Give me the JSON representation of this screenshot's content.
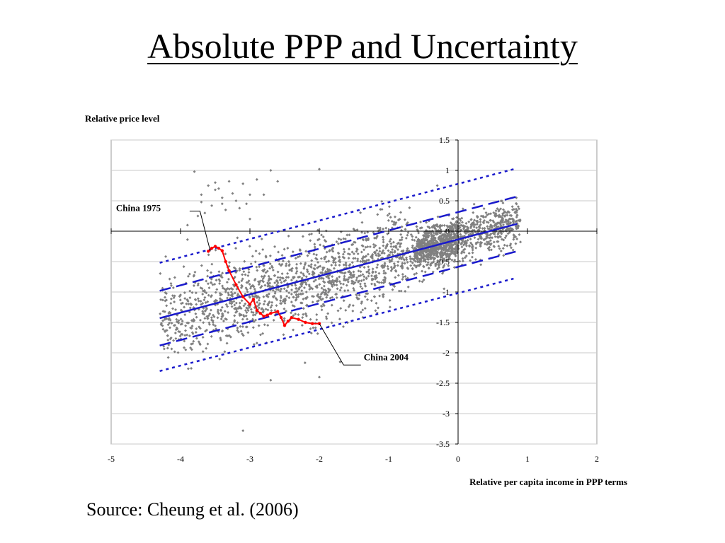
{
  "slide": {
    "title": "Absolute PPP and Uncertainty",
    "source": "Source: Cheung et al. (2006)"
  },
  "chart_data": {
    "type": "scatter",
    "ylabel": "Relative price level",
    "xlabel": "Relative per capita income in PPP terms",
    "xlim": [
      -5,
      2
    ],
    "ylim": [
      -3.5,
      1.5
    ],
    "x_ticks": [
      -5,
      -4,
      -3,
      -2,
      -1,
      0,
      1,
      2
    ],
    "y_ticks": [
      1.5,
      1,
      0.5,
      0,
      -0.5,
      -1,
      -1.5,
      -2,
      -2.5,
      -3,
      -3.5
    ],
    "grid": "horizontal",
    "colors": {
      "points": "#808080",
      "lines": "#1a1acc",
      "china": "#ff0000"
    },
    "scatter_model": {
      "count": 2600,
      "x_range": [
        -4.3,
        0.9
      ],
      "intercept": -0.13,
      "slope": 0.31
    },
    "cluster_points": [
      [
        -3.8,
        0.98
      ],
      [
        -3.7,
        0.6
      ],
      [
        -3.6,
        0.75
      ],
      [
        -3.5,
        0.8
      ],
      [
        -3.45,
        0.7
      ],
      [
        -3.4,
        0.55
      ],
      [
        -3.3,
        0.82
      ],
      [
        -3.2,
        0.5
      ],
      [
        -3.1,
        0.78
      ],
      [
        -3.0,
        0.6
      ],
      [
        -2.9,
        0.85
      ],
      [
        -2.8,
        0.6
      ],
      [
        -3.55,
        0.42
      ],
      [
        -3.35,
        0.35
      ],
      [
        -3.25,
        0.62
      ],
      [
        -3.05,
        0.45
      ],
      [
        -2.7,
        1.0
      ],
      [
        -2.6,
        0.82
      ],
      [
        -2.0,
        1.02
      ],
      [
        -3.75,
        0.25
      ],
      [
        -3.65,
        0.3
      ],
      [
        -3.0,
        0.2
      ],
      [
        -3.9,
        0.1
      ],
      [
        -3.1,
        -3.28
      ],
      [
        -2.7,
        -2.45
      ],
      [
        -2.0,
        -2.4
      ],
      [
        -1.7,
        -2.15
      ],
      [
        -0.3,
        0.75
      ],
      [
        0.8,
        0.18
      ],
      [
        0.85,
        0.12
      ],
      [
        -3.4,
        0.45
      ],
      [
        -3.15,
        0.38
      ],
      [
        -3.5,
        0.68
      ],
      [
        -3.7,
        0.48
      ]
    ],
    "regression_lines": [
      {
        "name": "",
        "style": "solid",
        "x": [
          -4.3,
          0.85
        ],
        "y": [
          -1.43,
          0.12
        ]
      },
      {
        "name": "",
        "style": "dashed",
        "x": [
          -4.3,
          0.85
        ],
        "y": [
          -0.98,
          0.57
        ]
      },
      {
        "name": "",
        "style": "dashed",
        "x": [
          -4.3,
          0.85
        ],
        "y": [
          -1.88,
          -0.33
        ]
      },
      {
        "name": "",
        "style": "dotted",
        "x": [
          -4.3,
          0.8
        ],
        "y": [
          -0.52,
          1.02
        ]
      },
      {
        "name": "",
        "style": "dotted",
        "x": [
          -4.3,
          0.8
        ],
        "y": [
          -2.3,
          -0.78
        ]
      }
    ],
    "china_path": {
      "x": [
        -3.6,
        -3.55,
        -3.5,
        -3.45,
        -3.4,
        -3.35,
        -3.3,
        -3.2,
        -3.1,
        -3.0,
        -2.95,
        -2.9,
        -2.85,
        -2.8,
        -2.75,
        -2.7,
        -2.6,
        -2.55,
        -2.5,
        -2.45,
        -2.4,
        -2.3,
        -2.2,
        -2.1,
        -2.0
      ],
      "y": [
        -0.33,
        -0.28,
        -0.25,
        -0.28,
        -0.32,
        -0.5,
        -0.65,
        -0.88,
        -1.08,
        -1.2,
        -1.12,
        -1.3,
        -1.35,
        -1.4,
        -1.38,
        -1.35,
        -1.32,
        -1.42,
        -1.55,
        -1.48,
        -1.42,
        -1.45,
        -1.5,
        -1.52,
        -1.52
      ]
    },
    "annotations": [
      {
        "text": "China 1975",
        "x": -4.93,
        "y": 0.33,
        "target": [
          -3.57,
          -0.33
        ],
        "elbow": [
          -3.72,
          0.33
        ]
      },
      {
        "text": "China 2004",
        "x": -1.36,
        "y": -2.12,
        "target": [
          -2.0,
          -1.52
        ],
        "elbow": [
          -1.65,
          -2.2
        ]
      }
    ]
  }
}
